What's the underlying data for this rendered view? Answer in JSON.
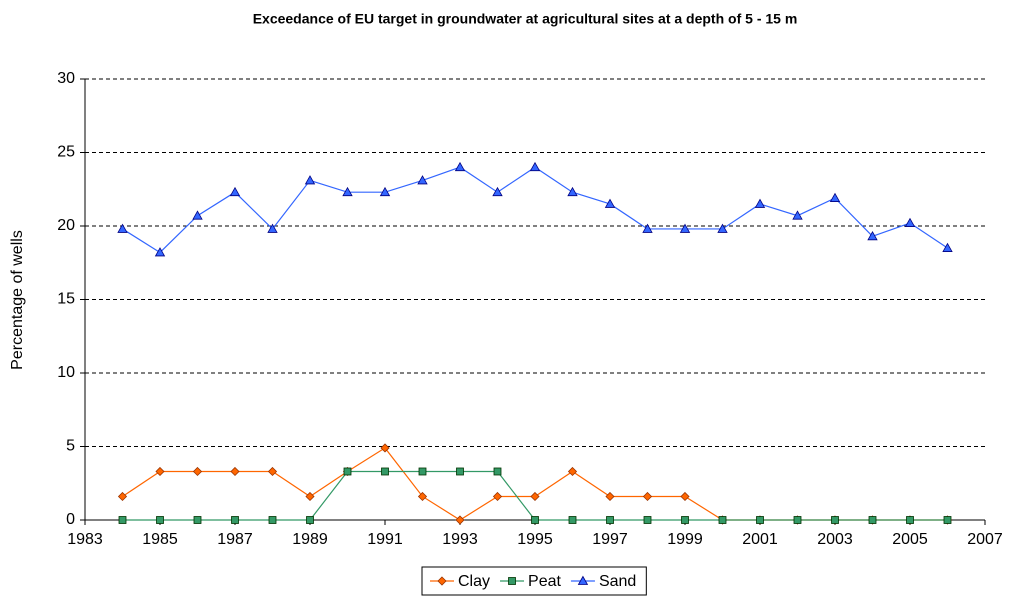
{
  "chart_data": {
    "type": "line",
    "title": "Exceedance of EU target in groundwater at agricultural sites at a depth of 5 - 15 m",
    "ylabel": "Percentage of wells",
    "x": [
      1984,
      1985,
      1986,
      1987,
      1988,
      1989,
      1990,
      1991,
      1992,
      1993,
      1994,
      1995,
      1996,
      1997,
      1998,
      1999,
      2000,
      2001,
      2002,
      2003,
      2004,
      2005,
      2006
    ],
    "series": [
      {
        "name": "Clay",
        "color": "#ff6600",
        "marker": "diamond",
        "values": [
          1.6,
          3.3,
          3.3,
          3.3,
          3.3,
          1.6,
          3.3,
          4.9,
          1.6,
          0,
          1.6,
          1.6,
          3.3,
          1.6,
          1.6,
          1.6,
          0,
          0,
          0,
          0,
          0,
          0,
          0
        ]
      },
      {
        "name": "Peat",
        "color": "#339966",
        "marker": "square",
        "values": [
          0,
          0,
          0,
          0,
          0,
          0,
          3.3,
          3.3,
          3.3,
          3.3,
          3.3,
          0,
          0,
          0,
          0,
          0,
          0,
          0,
          0,
          0,
          0,
          0,
          0
        ]
      },
      {
        "name": "Sand",
        "color": "#3366ff",
        "marker": "triangle",
        "values": [
          19.8,
          18.2,
          20.7,
          22.3,
          19.8,
          23.1,
          22.3,
          22.3,
          23.1,
          24.0,
          22.3,
          24.0,
          22.3,
          21.5,
          19.8,
          19.8,
          19.8,
          21.5,
          20.7,
          21.9,
          19.3,
          20.2,
          18.5
        ]
      }
    ],
    "xlim": [
      1983,
      2007
    ],
    "xticks": [
      1983,
      1985,
      1987,
      1989,
      1991,
      1993,
      1995,
      1997,
      1999,
      2001,
      2003,
      2005,
      2007
    ],
    "ylim": [
      0,
      30
    ],
    "yticks": [
      0,
      5,
      10,
      15,
      20,
      25,
      30
    ],
    "grid": true,
    "legend": "bottom"
  }
}
